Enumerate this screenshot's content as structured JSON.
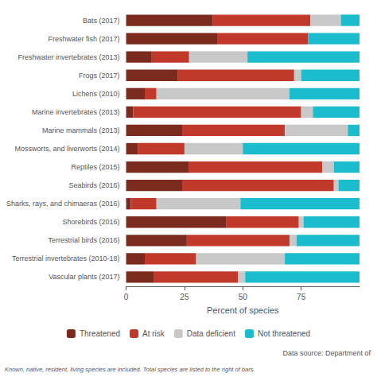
{
  "chart_data": {
    "type": "bar",
    "orientation": "horizontal",
    "stacked": true,
    "categories": [
      "Vascular plants (2017)",
      "Terrestrial invertebrates (2010-18)",
      "Terrestrial birds (2016)",
      "Shorebirds (2016)",
      "Sharks, rays, and chimaeras (2016)",
      "Seabirds (2016)",
      "Reptiles (2015)",
      "Mossworts, and liverworts (2014)",
      "Marine mammals (2013)",
      "Marine invertebrates (2013)",
      "Lichens (2010)",
      "Frogs (2017)",
      "Freshwater invertebrates (2013)",
      "Freshwater fish (2017)",
      "Bats (2017)"
    ],
    "series": [
      {
        "name": "Threatened",
        "color": "#7B2A1E",
        "values": [
          12,
          8,
          26,
          43,
          2,
          24,
          27,
          5,
          24,
          3,
          8,
          22,
          11,
          39,
          37
        ]
      },
      {
        "name": "At risk",
        "color": "#C0392B",
        "values": [
          36,
          22,
          44,
          31,
          11,
          65,
          57,
          20,
          44,
          72,
          5,
          50,
          16,
          39,
          42
        ]
      },
      {
        "name": "Data deficient",
        "color": "#C8C8C8",
        "values": [
          3,
          38,
          3,
          2,
          36,
          2,
          5,
          25,
          27,
          5,
          57,
          3,
          25,
          0,
          13
        ]
      },
      {
        "name": "Not threatened",
        "color": "#1ABCCD",
        "values": [
          49,
          32,
          27,
          24,
          51,
          9,
          11,
          50,
          5,
          20,
          30,
          25,
          48,
          22,
          8
        ]
      }
    ],
    "xlabel": "Percent of species",
    "xlim": [
      0,
      100
    ],
    "xticks": [
      0,
      25,
      50,
      75
    ],
    "grid": false,
    "legend": "bottom",
    "annotations": [
      "Data source: Department of",
      "Known, native, resident, living species are included. Total species are listed to the right of bars."
    ]
  }
}
